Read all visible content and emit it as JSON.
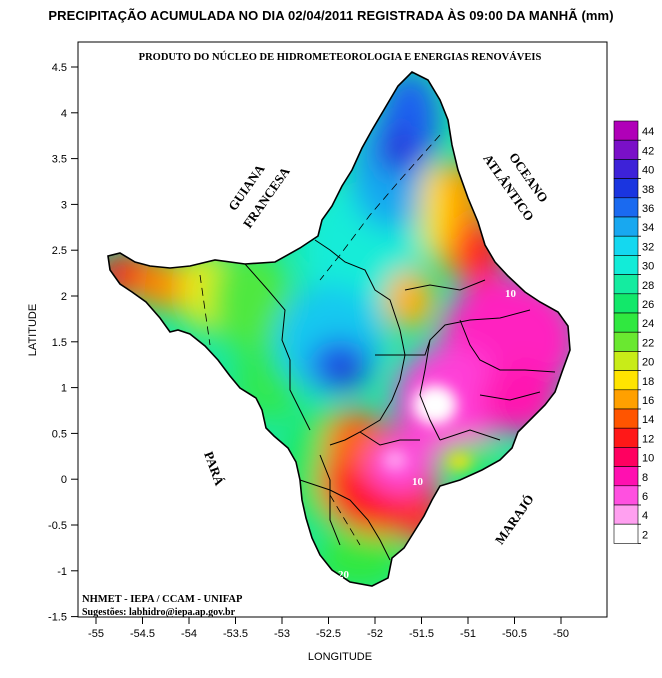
{
  "title": "PRECIPITAÇÃO ACUMULADA NO DIA 02/04/2011 REGISTRADA ÀS 09:00 DA MANHÃ (mm)",
  "subtitle": "PRODUTO DO NÚCLEO DE HIDROMETEOROLOGIA E ENERGIAS RENOVÁVEIS",
  "axes": {
    "xlabel": "LONGITUDE",
    "ylabel": "LATITUDE",
    "xticks": [
      "-55",
      "-54.5",
      "-54",
      "-53.5",
      "-53",
      "-52.5",
      "-52",
      "-51.5",
      "-51",
      "-50.5",
      "-50"
    ],
    "yticks": [
      "4.5",
      "4",
      "3.5",
      "3",
      "2.5",
      "2",
      "1.5",
      "1",
      "0.5",
      "0",
      "-0.5",
      "-1",
      "-1.5"
    ],
    "xlim": [
      -55.2,
      -49.5
    ],
    "ylim": [
      -1.5,
      4.6
    ]
  },
  "map_labels": {
    "guiana_line1": "GUIANA",
    "guiana_line2": "FRANCESA",
    "oceano_line1": "OCEANO",
    "oceano_line2": "ATLÂNTICO",
    "para": "PARÁ",
    "marajo": "MARAJÓ"
  },
  "contour_labels": [
    "10",
    "10",
    "20"
  ],
  "credits": {
    "line1": "NHMET - IEPA  /  CCAM - UNIFAP",
    "line2": "Sugestões: labhidro@iepa.ap.gov.br"
  },
  "legend": {
    "levels": [
      "44",
      "42",
      "40",
      "38",
      "36",
      "34",
      "32",
      "30",
      "28",
      "26",
      "24",
      "22",
      "20",
      "18",
      "16",
      "14",
      "12",
      "10",
      "8",
      "6",
      "4",
      "2"
    ],
    "colors": [
      "#b000b8",
      "#7a10c8",
      "#3d22d8",
      "#1a35e0",
      "#1a6af0",
      "#18a8f0",
      "#14d8f0",
      "#12ecd8",
      "#14eca0",
      "#12e86a",
      "#30e840",
      "#6ae830",
      "#c8ec18",
      "#ffe400",
      "#ffa000",
      "#ff5500",
      "#ff1818",
      "#ff0060",
      "#ff10b0",
      "#ff50e0",
      "#ffa0f0",
      "#ffffff"
    ]
  }
}
